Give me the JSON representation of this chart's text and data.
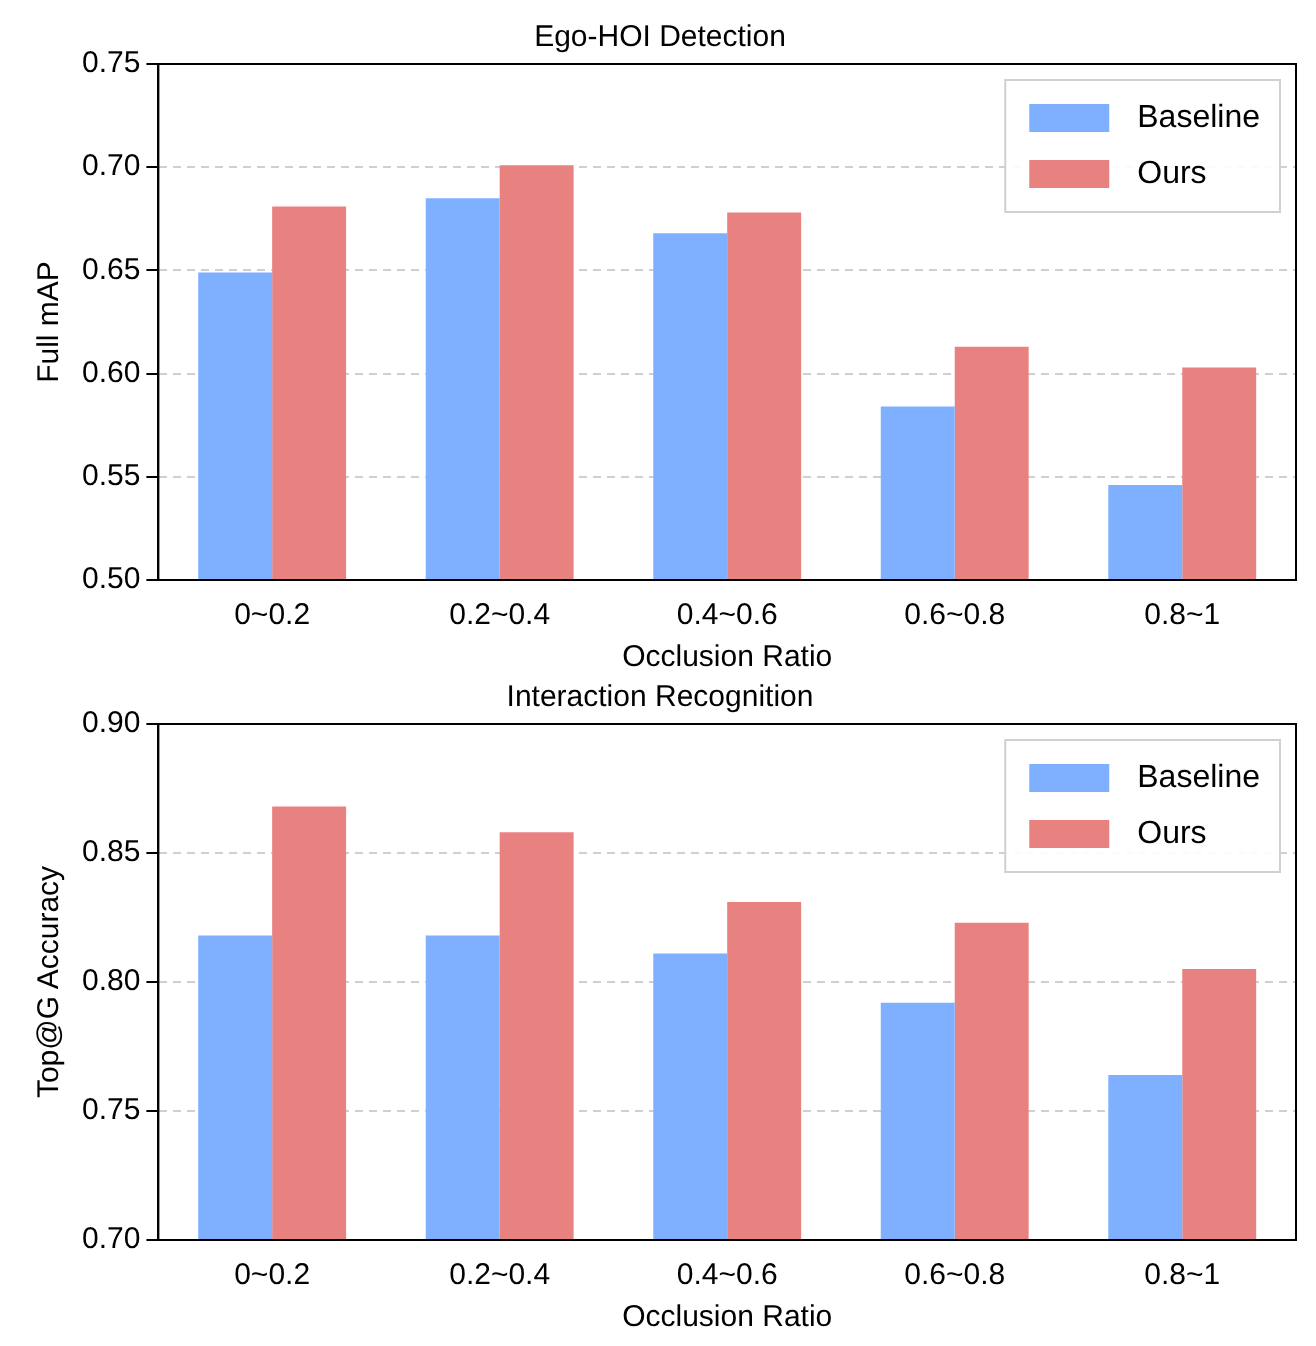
{
  "chart_data": [
    {
      "type": "bar",
      "title": "Ego-HOI Detection",
      "xlabel": "Occlusion Ratio",
      "ylabel": "Full mAP",
      "categories": [
        "0~0.2",
        "0.2~0.4",
        "0.4~0.6",
        "0.6~0.8",
        "0.8~1"
      ],
      "series": [
        {
          "name": "Baseline",
          "color": "#7fb0ff",
          "values": [
            0.649,
            0.685,
            0.668,
            0.584,
            0.546
          ]
        },
        {
          "name": "Ours",
          "color": "#e88280",
          "values": [
            0.681,
            0.701,
            0.678,
            0.613,
            0.603
          ]
        }
      ],
      "ylim": [
        0.5,
        0.75
      ],
      "yticks": [
        {
          "value": 0.5,
          "label": "0.50"
        },
        {
          "value": 0.55,
          "label": "0.55"
        },
        {
          "value": 0.6,
          "label": "0.60"
        },
        {
          "value": 0.65,
          "label": "0.65"
        },
        {
          "value": 0.7,
          "label": "0.70"
        },
        {
          "value": 0.75,
          "label": "0.75"
        }
      ],
      "grid": "y",
      "legend": "top right"
    },
    {
      "type": "bar",
      "title": "Interaction Recognition",
      "xlabel": "Occlusion Ratio",
      "ylabel": "Top@G Accuracy",
      "categories": [
        "0~0.2",
        "0.2~0.4",
        "0.4~0.6",
        "0.6~0.8",
        "0.8~1"
      ],
      "series": [
        {
          "name": "Baseline",
          "color": "#7fb0ff",
          "values": [
            0.818,
            0.818,
            0.811,
            0.792,
            0.764
          ]
        },
        {
          "name": "Ours",
          "color": "#e88280",
          "values": [
            0.868,
            0.858,
            0.831,
            0.823,
            0.805
          ]
        }
      ],
      "ylim": [
        0.7,
        0.9
      ],
      "yticks": [
        {
          "value": 0.7,
          "label": "0.70"
        },
        {
          "value": 0.75,
          "label": "0.75"
        },
        {
          "value": 0.8,
          "label": "0.80"
        },
        {
          "value": 0.85,
          "label": "0.85"
        },
        {
          "value": 0.9,
          "label": "0.90"
        }
      ],
      "grid": "y",
      "legend": "top right"
    }
  ]
}
